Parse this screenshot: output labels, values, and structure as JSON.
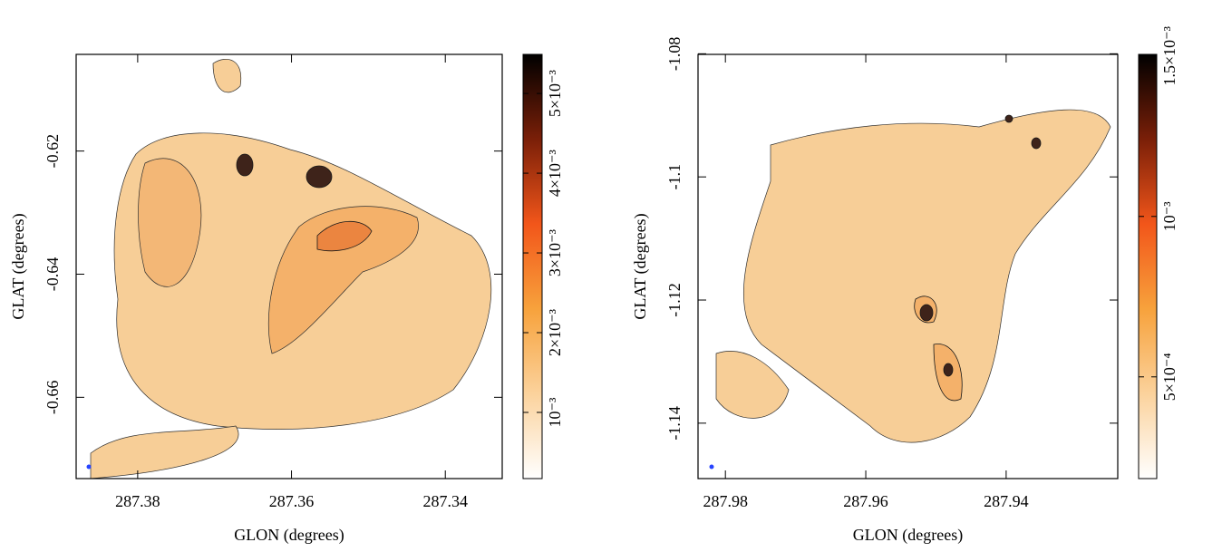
{
  "chart_data": [
    {
      "type": "image",
      "xlabel": "GLON (degrees)",
      "ylabel": "GLAT (degrees)",
      "xlim": [
        287.388,
        287.3326
      ],
      "xticks": [
        287.38,
        287.36,
        287.34
      ],
      "ylim": [
        -0.6732,
        -0.6043
      ],
      "yticks": [
        -0.66,
        -0.64,
        -0.62
      ],
      "colormap": [
        "#ffffff",
        "#fbd29c",
        "#f7a23c",
        "#f2561a",
        "#7a1f08",
        "#000000"
      ],
      "clim": [
        0.00017,
        0.00549
      ],
      "cticks": [
        {
          "value": 0.001,
          "label": "10⁻³"
        },
        {
          "value": 0.002,
          "label": "2×10⁻³"
        },
        {
          "value": 0.003,
          "label": "3×10⁻³"
        },
        {
          "value": 0.004,
          "label": "4×10⁻³"
        },
        {
          "value": 0.005,
          "label": "5×10⁻³"
        }
      ]
    },
    {
      "type": "image",
      "xlabel": "GLON (degrees)",
      "ylabel": "GLAT (degrees)",
      "xlim": [
        287.9839,
        287.9241
      ],
      "xticks": [
        287.98,
        287.96,
        287.94
      ],
      "ylim": [
        -1.149,
        -1.0801
      ],
      "yticks": [
        -1.14,
        -1.12,
        -1.1,
        -1.08
      ],
      "colormap": [
        "#ffffff",
        "#fbd29c",
        "#f7a23c",
        "#f2561a",
        "#7a1f08",
        "#000000"
      ],
      "clim": [
        0.000183,
        0.001505
      ],
      "cticks": [
        {
          "value": 0.0005,
          "label": "5×10⁻⁴"
        },
        {
          "value": 0.001,
          "label": "10⁻³"
        },
        {
          "value": 0.0015,
          "label": "1.5×10⁻³"
        }
      ]
    }
  ]
}
